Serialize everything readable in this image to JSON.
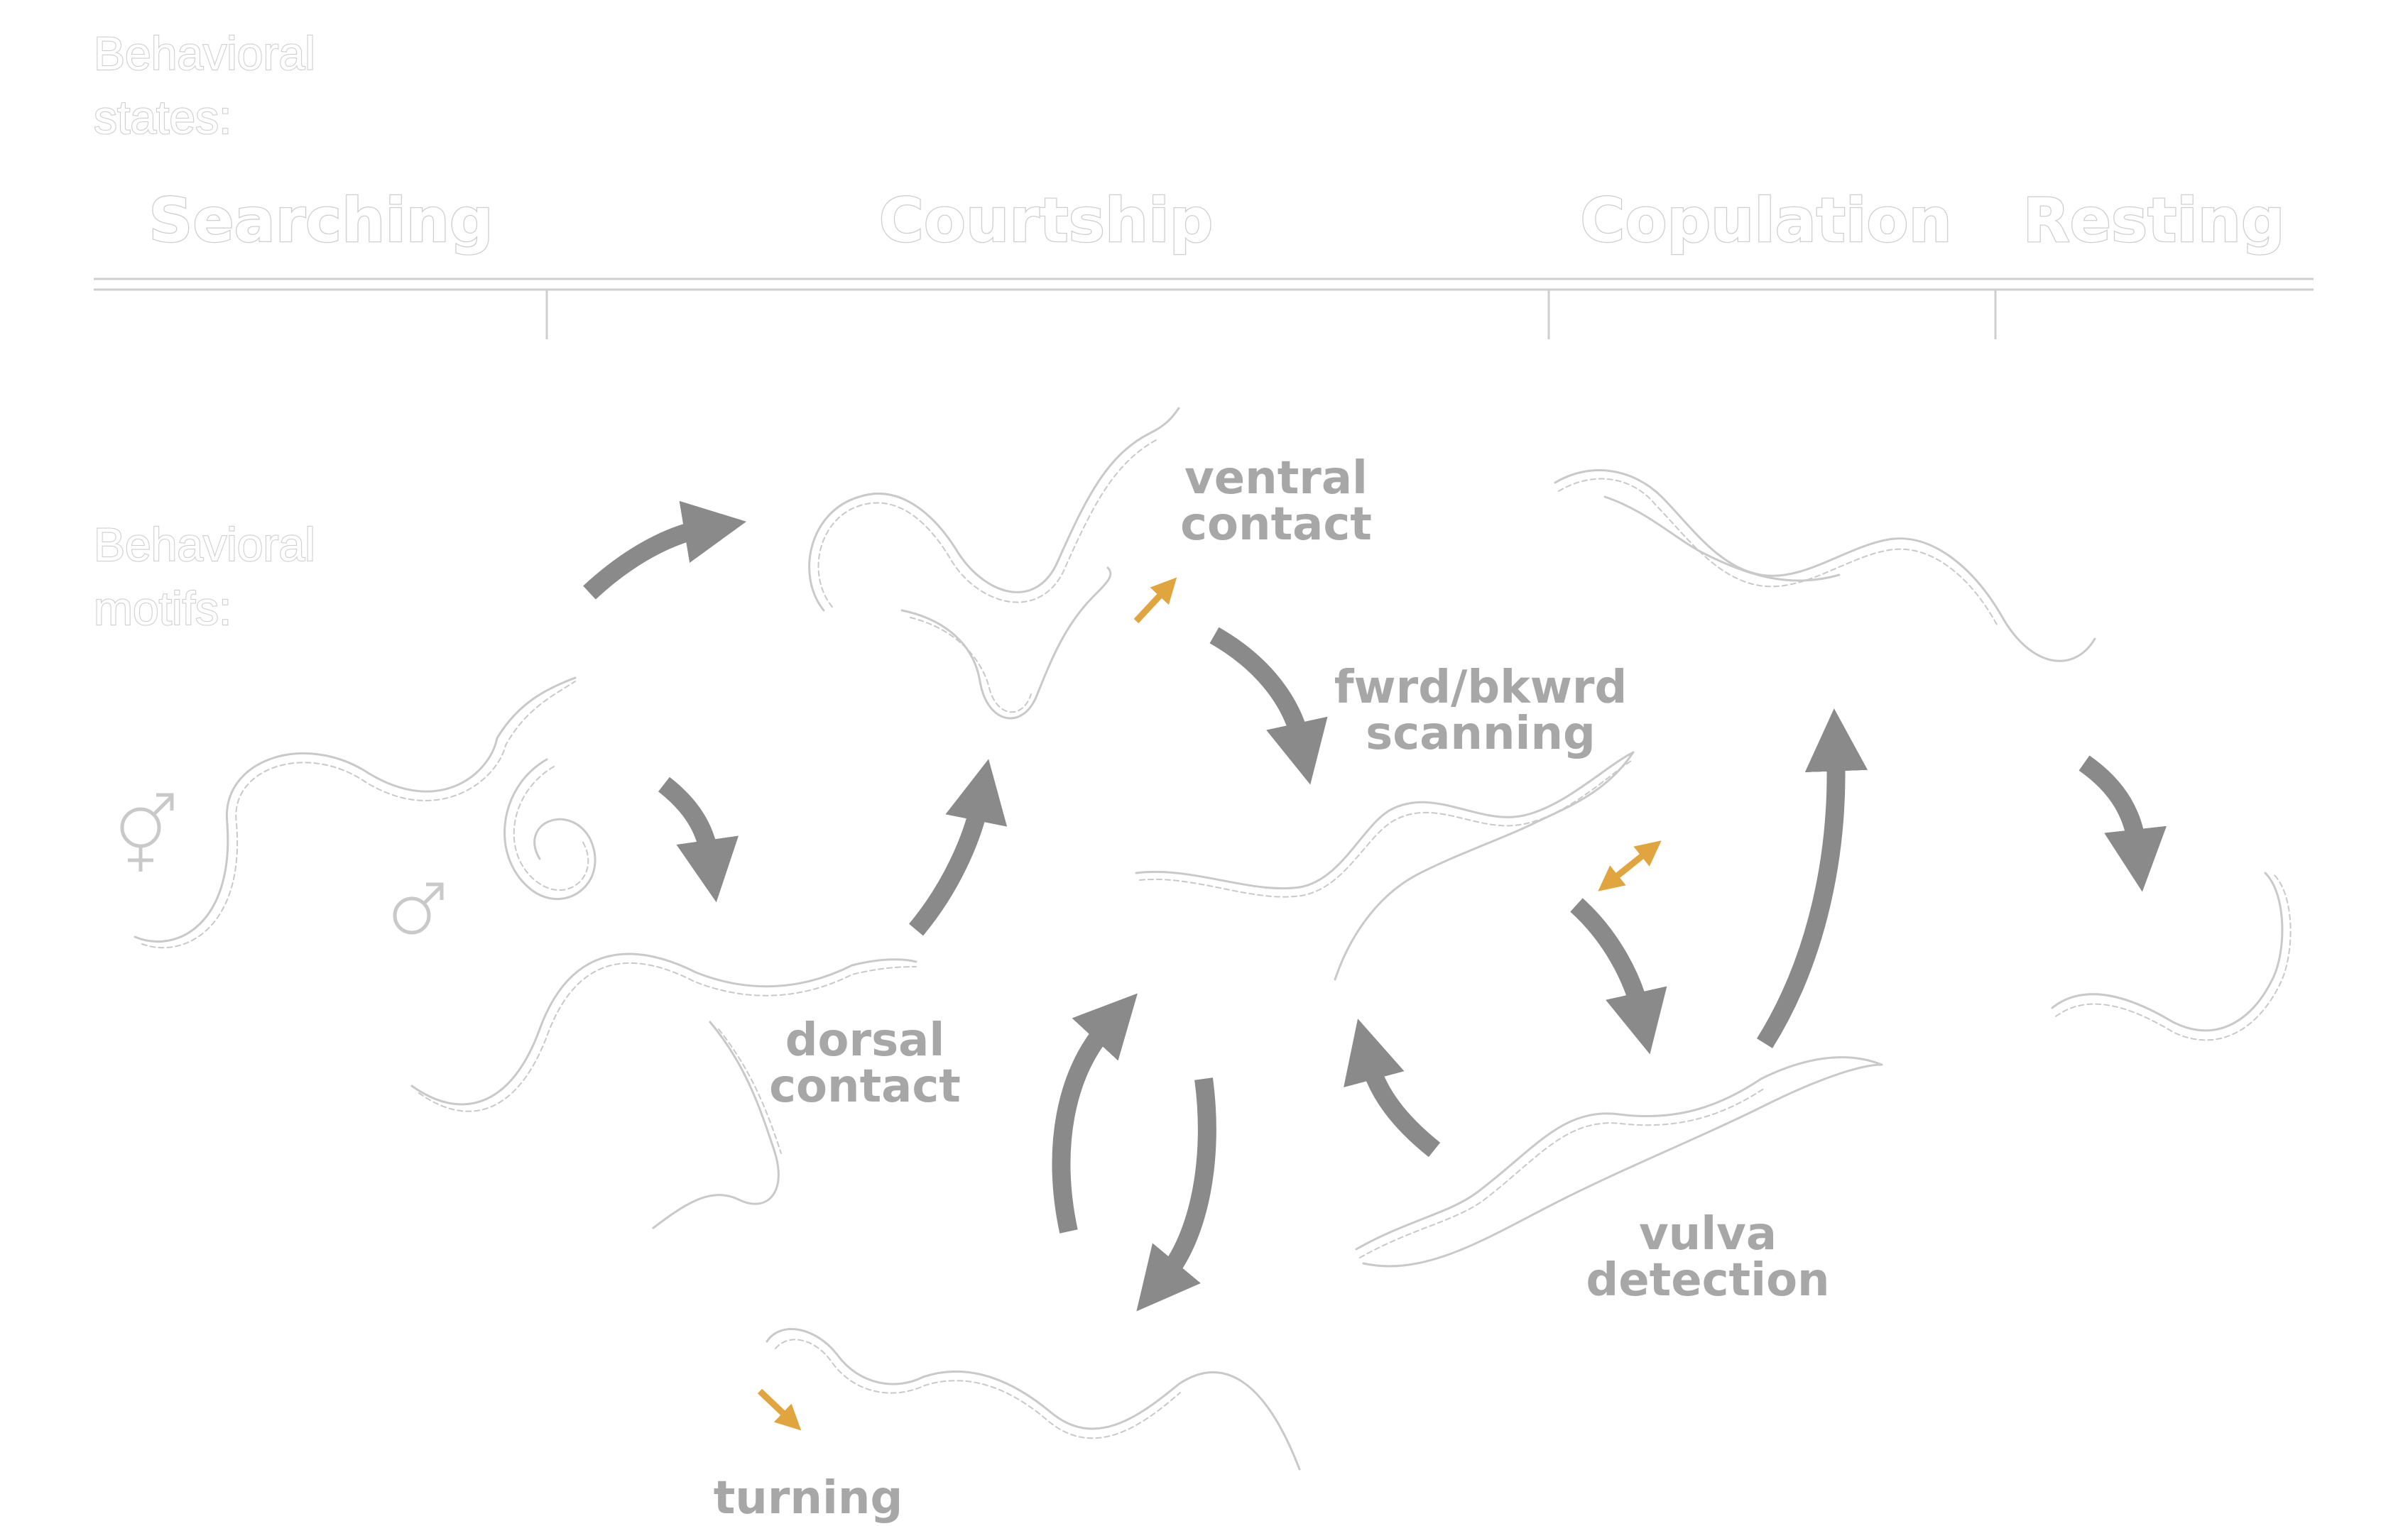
{
  "header": {
    "states_label_line1": "Behavioral",
    "states_label_line2": "states:",
    "motifs_label_line1": "Behavioral",
    "motifs_label_line2": "motifs:"
  },
  "states": [
    "Searching",
    "Courtship",
    "Copulation",
    "Resting"
  ],
  "motifs": {
    "ventral_contact": [
      "ventral",
      "contact"
    ],
    "scanning": [
      "fwrd/bkwrd",
      "scanning"
    ],
    "dorsal_contact": [
      "dorsal",
      "contact"
    ],
    "vulva_detection": [
      "vulva",
      "detection"
    ],
    "turning": [
      "turning"
    ]
  },
  "colors": {
    "arrow": "#8a8a8a",
    "motion_arrow": "#e0a53f",
    "worm_outline": "#c9c9c9",
    "motif_text": "#a7a7a7"
  },
  "icons": [
    "hermaphrodite-symbol",
    "male-symbol"
  ]
}
